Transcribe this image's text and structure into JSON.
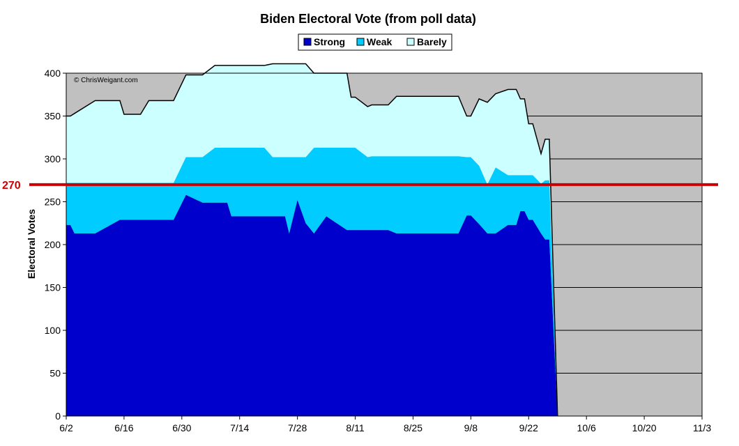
{
  "chart_data": {
    "type": "area",
    "stacked": true,
    "title": "Biden Electoral Vote (from poll data)",
    "ylabel": "Electoral Votes",
    "xlabel": "",
    "ylim": [
      0,
      400
    ],
    "yticks": [
      0,
      50,
      100,
      150,
      200,
      250,
      300,
      350,
      400
    ],
    "xrange": [
      "6/2",
      "11/3"
    ],
    "xticks": [
      "6/2",
      "6/16",
      "6/30",
      "7/14",
      "7/28",
      "8/11",
      "8/25",
      "9/8",
      "9/22",
      "10/6",
      "10/20",
      "11/3"
    ],
    "xtick_days": [
      0,
      14,
      28,
      42,
      56,
      70,
      84,
      98,
      112,
      126,
      140,
      154
    ],
    "x_days": [
      0,
      1,
      2,
      7,
      13,
      14,
      18,
      20,
      22,
      24,
      26,
      29,
      33,
      36,
      39,
      40,
      42,
      44,
      47,
      48,
      50,
      51,
      53,
      54,
      56,
      58,
      60,
      63,
      68,
      69,
      70,
      73,
      74,
      78,
      80,
      84,
      86,
      90,
      91,
      93,
      94,
      95,
      97,
      98,
      100,
      102,
      104,
      107,
      109,
      110,
      111,
      112,
      113,
      115,
      116,
      117
    ],
    "series": [
      {
        "name": "Strong",
        "color": "#0000cc",
        "values": [
          223,
          223,
          213,
          213,
          229,
          229,
          229,
          229,
          229,
          229,
          229,
          258,
          249,
          249,
          249,
          233,
          233,
          233,
          233,
          233,
          233,
          233,
          233,
          213,
          252,
          225,
          213,
          233,
          217,
          217,
          217,
          217,
          217,
          217,
          213,
          213,
          213,
          213,
          213,
          213,
          213,
          213,
          234,
          234,
          224,
          213,
          213,
          223,
          223,
          239,
          239,
          229,
          229,
          213,
          206,
          206
        ]
      },
      {
        "name": "Weak",
        "color": "#00ccff",
        "values": [
          49,
          49,
          59,
          59,
          43,
          43,
          43,
          43,
          43,
          43,
          43,
          44,
          53,
          64,
          64,
          80,
          80,
          80,
          80,
          80,
          69,
          69,
          69,
          89,
          50,
          77,
          100,
          80,
          96,
          96,
          96,
          85,
          86,
          86,
          90,
          90,
          90,
          90,
          90,
          90,
          90,
          90,
          68,
          68,
          68,
          57,
          77,
          58,
          58,
          42,
          42,
          52,
          52,
          58,
          69,
          69
        ]
      },
      {
        "name": "Barely",
        "color": "#ccffff",
        "values": [
          78,
          78,
          81,
          96,
          96,
          80,
          80,
          96,
          96,
          96,
          96,
          96,
          96,
          96,
          96,
          96,
          96,
          96,
          96,
          96,
          109,
          109,
          109,
          109,
          109,
          109,
          87,
          87,
          87,
          59,
          59,
          59,
          60,
          60,
          70,
          70,
          70,
          70,
          70,
          70,
          70,
          70,
          48,
          48,
          78,
          96,
          86,
          100,
          100,
          89,
          89,
          60,
          60,
          35,
          48,
          48
        ]
      }
    ],
    "end_day": 119,
    "annotations": [
      {
        "text": "270",
        "value": 270,
        "color": "#cc0000"
      },
      {
        "text": "© ChrisWeigant.com"
      }
    ],
    "legend": {
      "placement": "top-center",
      "entries": [
        "Strong",
        "Weak",
        "Barely"
      ]
    },
    "plot_background": "#c0c0c0",
    "grid": true
  }
}
